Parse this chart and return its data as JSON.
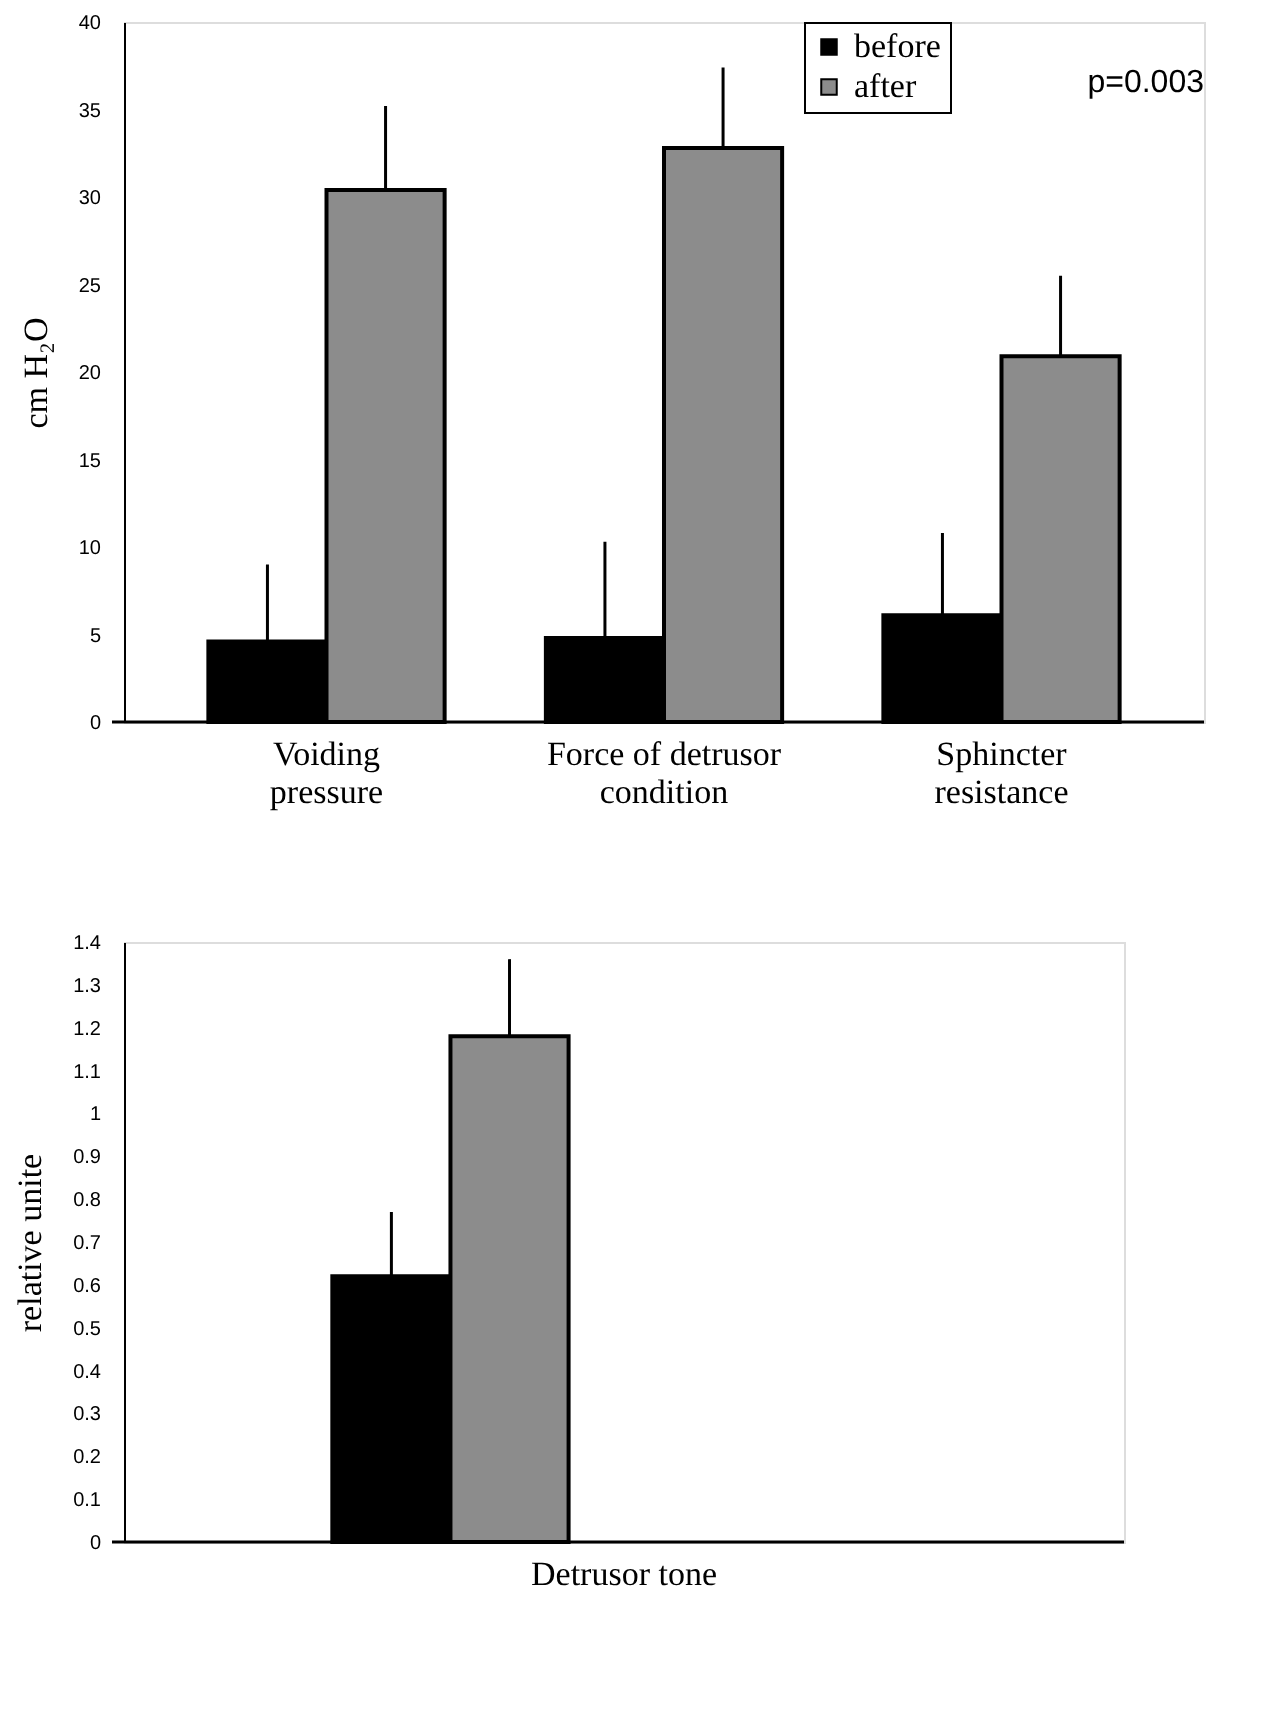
{
  "chart_data": [
    {
      "type": "bar",
      "ylabel": "cm H₂O",
      "categories": [
        "Voiding pressure",
        "Force of detrusor condition",
        "Sphincter resistance"
      ],
      "series": [
        {
          "name": "before",
          "color": "#000000",
          "values": [
            4.6,
            4.8,
            6.1
          ],
          "errors": [
            [
              4.6,
              9.0
            ],
            [
              4.8,
              10.3
            ],
            [
              6.1,
              10.8
            ]
          ]
        },
        {
          "name": "after",
          "color": "#8c8c8c",
          "values": [
            30.4,
            32.8,
            20.9
          ],
          "errors": [
            [
              30.4,
              35.2
            ],
            [
              32.8,
              37.4
            ],
            [
              20.9,
              25.5
            ]
          ]
        }
      ],
      "ylim": [
        0,
        40
      ],
      "yticks": [
        0,
        5,
        10,
        15,
        20,
        25,
        30,
        35,
        40
      ],
      "grid": false,
      "legend": "top right",
      "annotations": [
        "p=0.003"
      ]
    },
    {
      "type": "bar",
      "ylabel": "relative unite",
      "categories": [
        "Detrusor tone"
      ],
      "series": [
        {
          "color": "#000000",
          "values": [
            0.62
          ],
          "errors": [
            [
              0.62,
              0.77
            ]
          ]
        },
        {
          "color": "#8c8c8c",
          "values": [
            1.18
          ],
          "errors": [
            [
              1.18,
              1.36
            ]
          ]
        }
      ],
      "ylim": [
        0,
        1.4
      ],
      "yticks": [
        0,
        0.1,
        0.2,
        0.3,
        0.4,
        0.5,
        0.6,
        0.7,
        0.8,
        0.9,
        1,
        1.1,
        1.2,
        1.3,
        1.4
      ],
      "grid": false,
      "legend": false
    }
  ]
}
